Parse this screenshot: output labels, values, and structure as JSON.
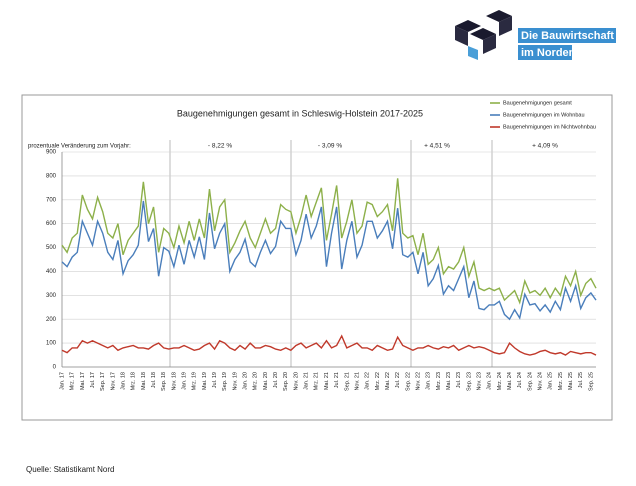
{
  "logo": [
    "Die Bauwirtschaft",
    "im Norden"
  ],
  "source": "Quelle: Statistikamt Nord",
  "chart_data": {
    "type": "line",
    "title": "Baugenehmigungen gesamt in Schleswig-Holstein 2017-2025",
    "annotations": [
      "prozentuale Veränderung zum Vorjahr:",
      "- 8,22 %",
      "- 3,09 %",
      "+ 4,51 %",
      "+ 4,09 %"
    ],
    "categories": [
      "Jan. 17",
      null,
      "Mrz. 17",
      null,
      "Mai. 17",
      null,
      "Jul. 17",
      null,
      "Sep. 17",
      null,
      "Nov. 17",
      null,
      "Jan. 18",
      null,
      "Mrz. 18",
      null,
      "Mai. 18",
      null,
      "Jul. 18",
      null,
      "Sep. 18",
      null,
      "Nov. 18",
      null,
      "Jan. 19",
      null,
      "Mrz. 19",
      null,
      "Mai. 19",
      null,
      "Jul. 19",
      null,
      "Sep. 19",
      null,
      "Nov. 19",
      null,
      "Jan. 20",
      null,
      "Mrz. 20",
      null,
      "Mai. 20",
      null,
      "Jul. 20",
      null,
      "Sep. 20",
      null,
      "Nov. 20",
      null,
      "Jan. 21",
      null,
      "Mrz. 21",
      null,
      "Mai. 21",
      null,
      "Jul. 21",
      null,
      "Sep. 21",
      null,
      "Nov. 21",
      null,
      "Jan. 22",
      null,
      "Mrz. 22",
      null,
      "Mai. 22",
      null,
      "Jul. 22",
      null,
      "Sep. 22",
      null,
      "Nov. 22",
      null,
      "Jan. 23",
      null,
      "Mrz. 23",
      null,
      "Mai. 23",
      null,
      "Jul. 23",
      null,
      "Sep. 23",
      null,
      "Nov. 23",
      null,
      "Jan. 24",
      null,
      "Mrz. 24",
      null,
      "Mai. 24",
      null,
      "Jul. 24",
      null,
      "Sep. 24",
      null,
      "Nov. 24",
      null,
      "Jan. 25",
      null,
      "Mrz. 25",
      null,
      "Mai. 25",
      null,
      "Jul. 25",
      null,
      "Sep. 25",
      null
    ],
    "series": [
      {
        "name": "Baugenehmigungen gesamt",
        "color": "#8db04a",
        "values": [
          510,
          480,
          540,
          560,
          720,
          660,
          620,
          710,
          650,
          560,
          540,
          600,
          470,
          530,
          560,
          590,
          775,
          600,
          670,
          480,
          580,
          560,
          500,
          590,
          520,
          610,
          530,
          620,
          540,
          745,
          570,
          670,
          700,
          480,
          520,
          570,
          610,
          540,
          500,
          560,
          620,
          560,
          580,
          680,
          660,
          650,
          560,
          630,
          720,
          630,
          690,
          750,
          530,
          640,
          760,
          540,
          610,
          700,
          560,
          590,
          690,
          680,
          630,
          650,
          680,
          570,
          790,
          560,
          540,
          550,
          470,
          560,
          430,
          450,
          500,
          390,
          420,
          410,
          440,
          500,
          380,
          440,
          330,
          320,
          330,
          320,
          330,
          280,
          300,
          320,
          270,
          360,
          310,
          320,
          300,
          330,
          290,
          330,
          300,
          380,
          340,
          400,
          300,
          350,
          370,
          330
        ]
      },
      {
        "name": "Baugenehmigungen im Wohnbau",
        "color": "#4a7ebb",
        "values": [
          440,
          420,
          460,
          480,
          610,
          560,
          510,
          610,
          560,
          480,
          450,
          530,
          390,
          445,
          470,
          510,
          695,
          525,
          580,
          380,
          500,
          485,
          420,
          510,
          430,
          530,
          460,
          545,
          450,
          645,
          495,
          560,
          600,
          400,
          450,
          480,
          535,
          440,
          420,
          480,
          530,
          475,
          505,
          610,
          580,
          580,
          470,
          530,
          640,
          540,
          590,
          670,
          420,
          560,
          670,
          410,
          530,
          610,
          460,
          510,
          610,
          610,
          540,
          570,
          610,
          495,
          665,
          470,
          460,
          480,
          390,
          480,
          340,
          370,
          425,
          305,
          340,
          320,
          370,
          420,
          290,
          360,
          245,
          240,
          260,
          260,
          275,
          220,
          200,
          240,
          205,
          305,
          260,
          265,
          235,
          260,
          230,
          275,
          240,
          330,
          275,
          340,
          245,
          290,
          310,
          280
        ]
      },
      {
        "name": "Baugenehmigungen im Nichtwohnbau",
        "color": "#c0392b",
        "values": [
          70,
          60,
          80,
          80,
          110,
          100,
          110,
          100,
          90,
          80,
          90,
          70,
          80,
          85,
          90,
          80,
          80,
          75,
          90,
          100,
          80,
          75,
          80,
          80,
          90,
          80,
          70,
          75,
          90,
          100,
          75,
          110,
          100,
          80,
          70,
          90,
          75,
          100,
          80,
          80,
          90,
          85,
          75,
          70,
          80,
          70,
          90,
          100,
          80,
          90,
          100,
          80,
          110,
          80,
          90,
          130,
          80,
          90,
          100,
          80,
          80,
          70,
          90,
          80,
          70,
          75,
          125,
          90,
          80,
          70,
          80,
          80,
          90,
          80,
          75,
          85,
          80,
          90,
          70,
          80,
          90,
          80,
          85,
          80,
          70,
          60,
          55,
          60,
          100,
          80,
          65,
          55,
          50,
          55,
          65,
          70,
          60,
          55,
          60,
          50,
          65,
          60,
          55,
          60,
          60,
          50
        ]
      }
    ],
    "ylim": [
      0,
      900
    ],
    "yticks": [
      0,
      100,
      200,
      300,
      400,
      500,
      600,
      700,
      800,
      900
    ],
    "grid": true
  }
}
